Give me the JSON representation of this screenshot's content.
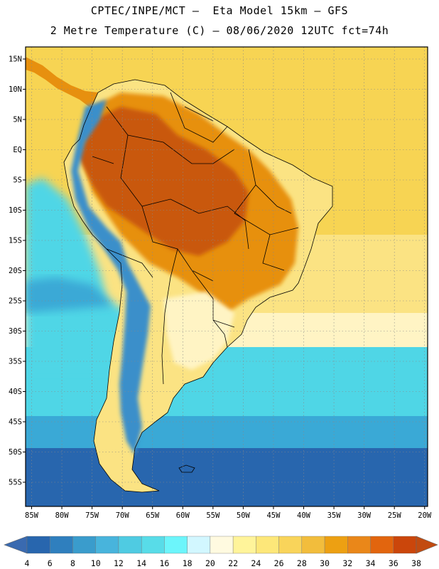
{
  "header": {
    "line1": "CPTEC/INPE/MCT –  Eta Model 15km – GFS",
    "line2": "2 Metre Temperature (C) – 08/06/2020 12UTC fct=74h"
  },
  "axes": {
    "lat_labels": [
      "15N",
      "10N",
      "5N",
      "EQ",
      "5S",
      "10S",
      "15S",
      "20S",
      "25S",
      "30S",
      "35S",
      "40S",
      "45S",
      "50S",
      "55S"
    ],
    "lat_values": [
      15,
      10,
      5,
      0,
      -5,
      -10,
      -15,
      -20,
      -25,
      -30,
      -35,
      -40,
      -45,
      -50,
      -55
    ],
    "lon_labels": [
      "85W",
      "80W",
      "75W",
      "70W",
      "65W",
      "60W",
      "55W",
      "50W",
      "45W",
      "40W",
      "35W",
      "30W",
      "25W",
      "20W"
    ],
    "lon_values": [
      -85,
      -80,
      -75,
      -70,
      -65,
      -60,
      -55,
      -50,
      -45,
      -40,
      -35,
      -30,
      -25,
      -20
    ],
    "lon_range": [
      -86,
      -19.5
    ],
    "lat_range": [
      -59,
      17
    ]
  },
  "colorbar": {
    "labels": [
      "4",
      "6",
      "8",
      "10",
      "12",
      "14",
      "16",
      "18",
      "20",
      "22",
      "24",
      "26",
      "28",
      "30",
      "32",
      "34",
      "36",
      "38"
    ],
    "colors": [
      "#2866ae",
      "#2f7fbe",
      "#3a9ccc",
      "#48b4dc",
      "#4fcbe2",
      "#58dce8",
      "#6cf5fb",
      "#d2f7ff",
      "#fffae0",
      "#fff49a",
      "#fde779",
      "#f9d45a",
      "#f2bd3c",
      "#eda012",
      "#ea8719",
      "#e2650e",
      "#cb460b"
    ],
    "low_arrow_color": "#3a6ab0",
    "high_arrow_color": "#c24b10"
  },
  "palette": {
    "ocean_hot": "#f7d453",
    "ocean_warm": "#fbe383",
    "ocean_mild": "#fff4c4",
    "ocean_cool": "#4fd6e6",
    "ocean_cold": "#3aa9d6",
    "ocean_polar": "#2866ae",
    "interior_hot": "#c9590d",
    "interior_warm": "#e7900f",
    "andes_cold": "#3a8fca",
    "border": "#000000",
    "grid": "#888888"
  }
}
